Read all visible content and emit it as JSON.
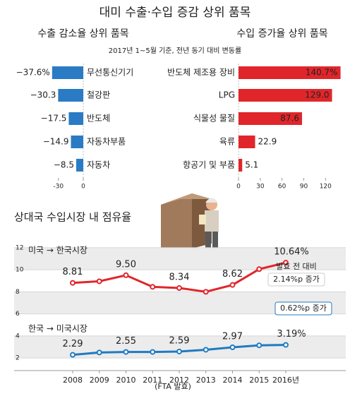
{
  "title": "대미 수출·수입 증감 상위 품목",
  "chart_data": [
    {
      "type": "hbar",
      "title": "수출 감소율 상위 품목",
      "subtitle": "2017년 1~5월 기준, 전년 동기 대비 변동률",
      "categories": [
        "무선통신기기",
        "철강판",
        "반도체",
        "자동차부품",
        "자동차"
      ],
      "values": [
        -37.6,
        -30.3,
        -17.5,
        -14.9,
        -8.5
      ],
      "value_labels": [
        "−37.6%",
        "−30.3",
        "−17.5",
        "−14.9",
        "−8.5"
      ],
      "color": "#2a7bc4",
      "xlim": [
        -40,
        0
      ],
      "xticks": [
        -30,
        0
      ]
    },
    {
      "type": "hbar",
      "title": "수입 증가율 상위 품목",
      "categories": [
        "반도체 제조용 장비",
        "LPG",
        "식물성 물질",
        "육류",
        "항공기 및 부품"
      ],
      "values": [
        140.7,
        129.0,
        87.6,
        22.9,
        5.1
      ],
      "value_labels": [
        "140.7%",
        "129.0",
        "87.6",
        "22.9",
        "5.1"
      ],
      "color": "#e0262b",
      "xlim": [
        0,
        145
      ],
      "xticks": [
        0,
        30,
        60,
        90,
        120
      ]
    },
    {
      "type": "line",
      "title": "상대국 수입시장 내 점유율",
      "categories": [
        "2008",
        "2009",
        "2010",
        "2011",
        "2012",
        "2013",
        "2014",
        "2015",
        "2016년"
      ],
      "series": [
        {
          "name": "미국 → 한국시장",
          "color": "#e0262b",
          "values": [
            8.81,
            8.95,
            9.5,
            8.45,
            8.34,
            8.0,
            8.62,
            10.05,
            10.64
          ],
          "value_labels": [
            "8.81",
            null,
            "9.50",
            null,
            "8.34",
            null,
            "8.62",
            null,
            "10.64%"
          ]
        },
        {
          "name": "한국 → 미국시장",
          "color": "#1f7bc1",
          "values": [
            2.29,
            2.5,
            2.55,
            2.55,
            2.59,
            2.75,
            2.97,
            3.15,
            3.19
          ],
          "value_labels": [
            "2.29",
            null,
            "2.55",
            null,
            "2.59",
            null,
            "2.97",
            null,
            "3.19%"
          ]
        }
      ],
      "ylim": [
        1.5,
        12.5
      ],
      "yticks": [
        2,
        4,
        6,
        8,
        10,
        12
      ],
      "annotations": [
        "발효 전 대비",
        "2.14%p 증가",
        "0.62%p 증가",
        "(FTA 발효)"
      ]
    }
  ]
}
